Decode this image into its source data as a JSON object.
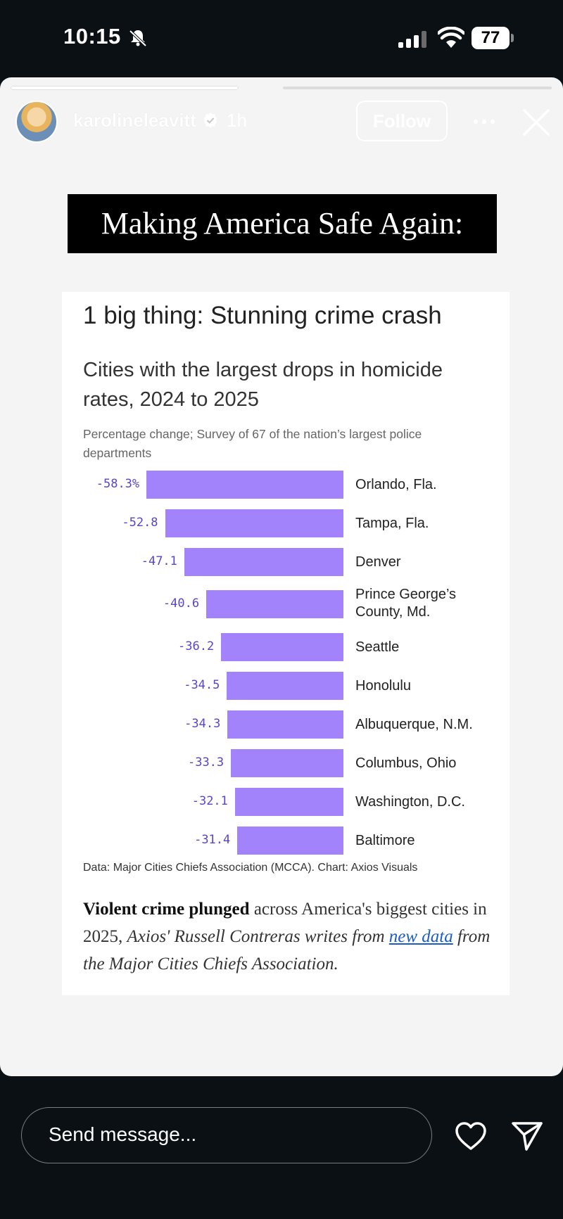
{
  "status_bar": {
    "time": "10:15",
    "battery": "77"
  },
  "story": {
    "username": "karolineleavitt",
    "time_ago": "1h",
    "follow_label": "Follow",
    "headline": "Making America Safe Again:"
  },
  "article": {
    "kicker": "1 big thing: Stunning crime crash",
    "source": "Data: Major Cities Chiefs Association (MCCA). Chart: Axios Visuals",
    "body_bold": "Violent crime plunged",
    "body_text": " across America's biggest cities in 2025, ",
    "body_italic1": "Axios' Russell Contreras writes from ",
    "body_link": "new data",
    "body_italic2": " from the Major Cities Chiefs Association."
  },
  "chart_data": {
    "type": "bar",
    "orientation": "horizontal",
    "title": "Cities with the largest drops in homicide rates, 2024 to 2025",
    "subtitle": "Percentage change; Survey of 67 of the nation’s largest police departments",
    "categories": [
      "Orlando, Fla.",
      "Tampa, Fla.",
      "Denver",
      "Prince George’s County, Md.",
      "Seattle",
      "Honolulu",
      "Albuquerque, N.M.",
      "Columbus, Ohio",
      "Washington, D.C.",
      "Baltimore"
    ],
    "values": [
      -58.3,
      -52.8,
      -47.1,
      -40.6,
      -36.2,
      -34.5,
      -34.3,
      -33.3,
      -32.1,
      -31.4
    ],
    "value_labels": [
      "-58.3%",
      "-52.8",
      "-47.1",
      "-40.6",
      "-36.2",
      "-34.5",
      "-34.3",
      "-33.3",
      "-32.1",
      "-31.4"
    ],
    "bar_color": "#a383fc",
    "label_color": "#5b44c6"
  },
  "composer": {
    "placeholder": "Send message..."
  }
}
